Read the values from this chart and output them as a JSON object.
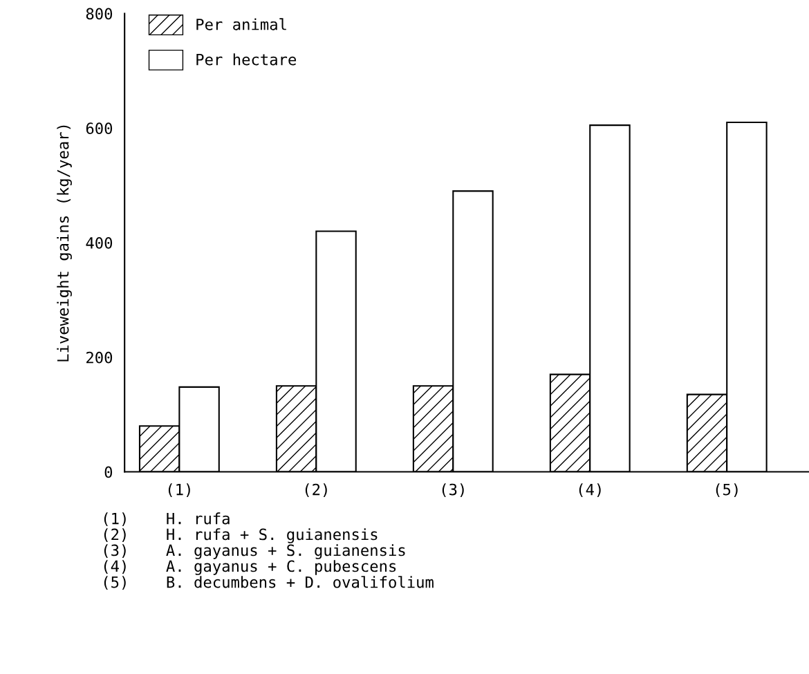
{
  "chart_data": {
    "type": "bar",
    "ylabel": "Liveweight gains (kg/year)",
    "categories": [
      "(1)",
      "(2)",
      "(3)",
      "(4)",
      "(5)"
    ],
    "series": [
      {
        "name": "Per animal",
        "color": "#000000",
        "values": [
          80,
          150,
          150,
          170,
          135
        ]
      },
      {
        "name": "Per hectare",
        "color": "#ffffff",
        "values": [
          148,
          420,
          490,
          605,
          610
        ]
      }
    ],
    "ylim": [
      0,
      800
    ],
    "yticks": [
      0,
      200,
      400,
      600,
      800
    ],
    "grid": false,
    "legend": "top left",
    "annotations": [
      "(1)    H. rufa",
      "(2)    H. rufa + S. guianensis",
      "(3)    A. gayanus + S. guianensis",
      "(4)    A. gayanus + C. pubescens",
      "(5)    B. decumbens + D. ovalifolium"
    ]
  }
}
